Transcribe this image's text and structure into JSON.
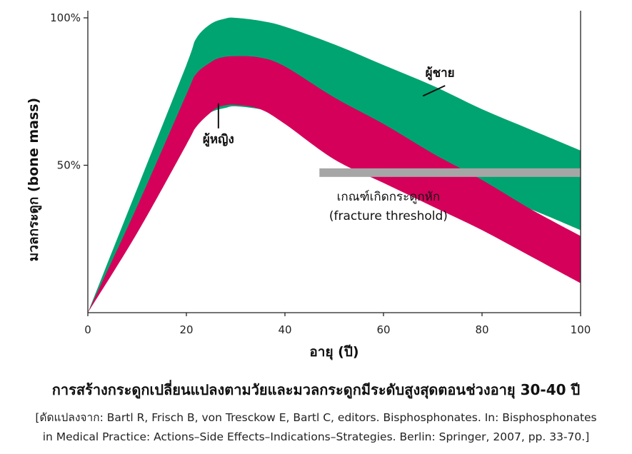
{
  "chart_data": {
    "type": "area",
    "title": "การสร้างกระดูกเปลี่ยนแปลงตามวัยและมวลกระดูกมีระดับสูงสุดตอนช่วงอายุ 30-40 ปี",
    "xlabel": "อายุ (ปี)",
    "ylabel": "มวลกระดูก (bone mass)",
    "xlim": [
      0,
      100
    ],
    "ylim": [
      0,
      100
    ],
    "x_ticks": [
      "0",
      "20",
      "40",
      "60",
      "80",
      "100"
    ],
    "y_ticks": [
      "50%",
      "100%"
    ],
    "y_tick_values": [
      50,
      100
    ],
    "grid": false,
    "series": [
      {
        "name": "ผู้ชาย",
        "color": "#00a470",
        "x": [
          0,
          10,
          20,
          22,
          25,
          28,
          30,
          35,
          40,
          50,
          60,
          70,
          80,
          90,
          100
        ],
        "lower": [
          0,
          30,
          61,
          64,
          68,
          69.5,
          70,
          69,
          67,
          61,
          54,
          48,
          41,
          35,
          28
        ],
        "upper": [
          0,
          42,
          84,
          93,
          98,
          99.8,
          100,
          99,
          97,
          91,
          84,
          77,
          69,
          62,
          55
        ]
      },
      {
        "name": "ผู้หญิง",
        "color": "#d4005a",
        "x": [
          0,
          10,
          20,
          22,
          25,
          27,
          30,
          35,
          40,
          50,
          60,
          70,
          80,
          90,
          100
        ],
        "lower": [
          0,
          27,
          57,
          63,
          68,
          70,
          70.5,
          69,
          64,
          52,
          44,
          36,
          28,
          19,
          10
        ],
        "upper": [
          0,
          36,
          74,
          81,
          85,
          86.5,
          87,
          86.5,
          83.5,
          73,
          64,
          54,
          45,
          35,
          26
        ]
      }
    ],
    "threshold": {
      "x_start": 47,
      "x_end": 100,
      "y": 47.5,
      "color": "#a6a6a6"
    },
    "annotations": {
      "men": "ผู้ชาย",
      "women": "ผู้หญิง",
      "threshold_thai": "เกณฑ์เกิดกระดูกหัก",
      "threshold_en": "(fracture threshold)"
    }
  },
  "citation": {
    "line1": "[ดัดแปลงจาก: Bartl R, Frisch B, von Tresckow E, Bartl C, editors. Bisphosphonates. In: Bisphosphonates",
    "line2": "in Medical Practice: Actions–Side Effects–Indications–Strategies. Berlin: Springer, 2007, pp. 33-70.]"
  }
}
